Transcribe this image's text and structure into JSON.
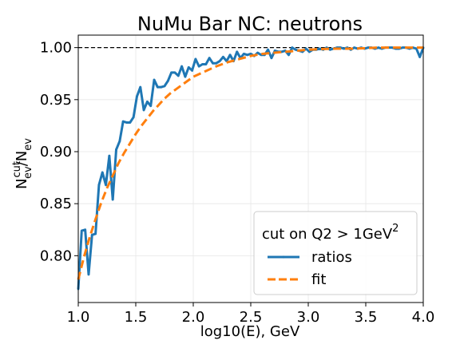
{
  "chart_data": {
    "type": "line",
    "title": "NuMu Bar NC: neutrons",
    "xlabel": "log10(E), GeV",
    "ylabel_main": "N",
    "ylabel_sup": "cut",
    "ylabel_sub": "ev",
    "ylabel_mid": "/N",
    "ylabel_sub2": "ev",
    "xlim": [
      1.0,
      4.0
    ],
    "ylim": [
      0.755,
      1.012
    ],
    "xticks": [
      "1.0",
      "1.5",
      "2.0",
      "2.5",
      "3.0",
      "3.5",
      "4.0"
    ],
    "xtick_values": [
      1.0,
      1.5,
      2.0,
      2.5,
      3.0,
      3.5,
      4.0
    ],
    "yticks": [
      "0.80",
      "0.85",
      "0.90",
      "0.95",
      "1.00"
    ],
    "ytick_values": [
      0.8,
      0.85,
      0.9,
      0.95,
      1.0
    ],
    "grid": true,
    "reference_line": {
      "y": 1.0,
      "style": "dashed",
      "color": "#000000"
    },
    "legend": {
      "title_prefix": "cut on Q2 > 1GeV",
      "title_sup": "2",
      "placement": "lower-right",
      "entries": [
        "ratios",
        "fit"
      ]
    },
    "series": [
      {
        "name": "ratios",
        "color": "#1f77b4",
        "style": "solid",
        "x": [
          1.0,
          1.03,
          1.06,
          1.09,
          1.12,
          1.15,
          1.18,
          1.21,
          1.24,
          1.27,
          1.3,
          1.33,
          1.36,
          1.39,
          1.42,
          1.45,
          1.48,
          1.51,
          1.54,
          1.57,
          1.6,
          1.63,
          1.66,
          1.69,
          1.72,
          1.75,
          1.78,
          1.81,
          1.84,
          1.87,
          1.9,
          1.93,
          1.96,
          1.99,
          2.02,
          2.05,
          2.08,
          2.11,
          2.14,
          2.17,
          2.2,
          2.23,
          2.26,
          2.29,
          2.32,
          2.35,
          2.38,
          2.41,
          2.44,
          2.47,
          2.5,
          2.53,
          2.56,
          2.59,
          2.62,
          2.65,
          2.68,
          2.71,
          2.74,
          2.77,
          2.8,
          2.83,
          2.86,
          2.89,
          2.92,
          2.95,
          2.98,
          3.01,
          3.04,
          3.07,
          3.1,
          3.13,
          3.16,
          3.19,
          3.22,
          3.25,
          3.28,
          3.31,
          3.34,
          3.37,
          3.4,
          3.43,
          3.46,
          3.49,
          3.52,
          3.55,
          3.58,
          3.61,
          3.64,
          3.67,
          3.7,
          3.73,
          3.76,
          3.79,
          3.82,
          3.85,
          3.88,
          3.91,
          3.94,
          3.97,
          4.0
        ],
        "y": [
          0.768,
          0.824,
          0.825,
          0.782,
          0.82,
          0.821,
          0.868,
          0.88,
          0.868,
          0.896,
          0.854,
          0.902,
          0.91,
          0.929,
          0.928,
          0.928,
          0.933,
          0.953,
          0.962,
          0.94,
          0.948,
          0.944,
          0.969,
          0.962,
          0.962,
          0.963,
          0.968,
          0.976,
          0.976,
          0.973,
          0.982,
          0.972,
          0.981,
          0.978,
          0.989,
          0.982,
          0.984,
          0.984,
          0.99,
          0.985,
          0.985,
          0.987,
          0.991,
          0.987,
          0.993,
          0.987,
          0.996,
          0.99,
          0.994,
          0.993,
          0.994,
          0.992,
          0.995,
          0.993,
          0.993,
          0.998,
          0.99,
          0.997,
          0.996,
          0.996,
          0.997,
          0.993,
          1.0,
          0.998,
          0.997,
          0.996,
          0.999,
          0.996,
          0.998,
          0.998,
          0.999,
          0.998,
          1.0,
          0.998,
          0.999,
          1.0,
          1.0,
          0.999,
          1.0,
          0.998,
          1.0,
          0.999,
          1.0,
          0.999,
          1.0,
          1.0,
          0.999,
          1.0,
          0.999,
          1.0,
          1.0,
          1.0,
          0.999,
          0.999,
          1.0,
          1.0,
          0.999,
          1.0,
          0.999,
          0.991,
          1.0
        ]
      },
      {
        "name": "fit",
        "color": "#ff7f0e",
        "style": "dashed",
        "x": [
          1.0,
          1.05,
          1.1,
          1.15,
          1.2,
          1.25,
          1.3,
          1.35,
          1.4,
          1.45,
          1.5,
          1.55,
          1.6,
          1.65,
          1.7,
          1.75,
          1.8,
          1.85,
          1.9,
          1.95,
          2.0,
          2.1,
          2.2,
          2.3,
          2.4,
          2.5,
          2.6,
          2.7,
          2.8,
          2.9,
          3.0,
          3.2,
          3.4,
          3.6,
          3.8,
          4.0
        ],
        "y": [
          0.777,
          0.799,
          0.818,
          0.835,
          0.851,
          0.865,
          0.877,
          0.889,
          0.899,
          0.908,
          0.917,
          0.925,
          0.932,
          0.939,
          0.945,
          0.951,
          0.956,
          0.96,
          0.964,
          0.968,
          0.972,
          0.977,
          0.982,
          0.986,
          0.989,
          0.992,
          0.994,
          0.995,
          0.996,
          0.997,
          0.998,
          0.999,
          0.999,
          1.0,
          1.0,
          1.0
        ]
      }
    ]
  }
}
